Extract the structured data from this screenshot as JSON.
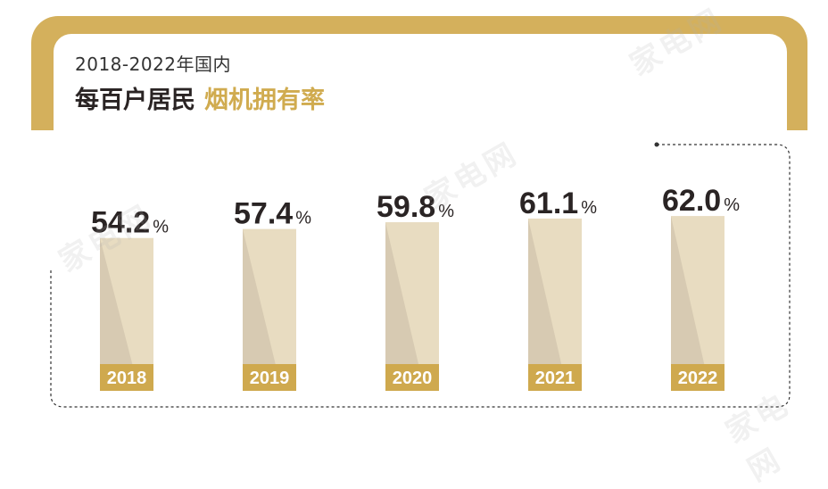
{
  "header": {
    "subtitle": "2018-2022年国内",
    "title_main": "每百户居民",
    "title_highlight": "烟机拥有率"
  },
  "colors": {
    "frame_gold": "#d4b05c",
    "bar_fill": "#e8dcc1",
    "bar_shadow": "#d2c6ae",
    "label_bg": "#cfa94e",
    "value_text": "#2a2424"
  },
  "chart_data": {
    "type": "bar",
    "categories": [
      "2018",
      "2019",
      "2020",
      "2021",
      "2022"
    ],
    "values": [
      54.2,
      57.4,
      59.8,
      61.1,
      62.0
    ],
    "unit": "%",
    "title": "2018-2022年国内 每百户居民 烟机拥有率",
    "xlabel": "",
    "ylabel": "",
    "ylim": [
      0,
      62
    ]
  },
  "watermarks": [
    "家电网",
    "家电网",
    "家电网",
    "家电网"
  ]
}
